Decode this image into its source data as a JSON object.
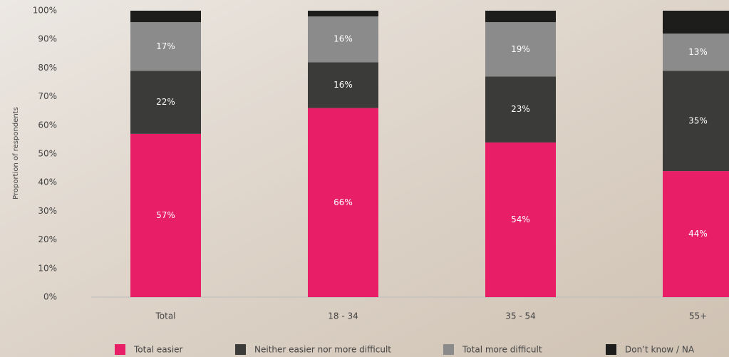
{
  "chart_data": {
    "type": "stacked_bar",
    "y_label": "Proportion of respondents",
    "categories": [
      "Total",
      "18 - 34",
      "35 - 54",
      "55+"
    ],
    "series": [
      {
        "name": "Total easier",
        "color": "#e81f67",
        "values": [
          57,
          66,
          54,
          44
        ],
        "value_labels": [
          "57%",
          "66%",
          "54%",
          "44%"
        ]
      },
      {
        "name": "Neither easier nor more difficult",
        "color": "#3b3b39",
        "values": [
          22,
          16,
          23,
          35
        ],
        "value_labels": [
          "22%",
          "16%",
          "23%",
          "35%"
        ]
      },
      {
        "name": "Total more difficult",
        "color": "#8b8b8b",
        "values": [
          17,
          16,
          19,
          13
        ],
        "value_labels": [
          "17%",
          "16%",
          "19%",
          "13%"
        ]
      },
      {
        "name": "Don’t know / NA",
        "color": "#1d1d1b",
        "values": [
          4,
          2,
          4,
          8
        ]
      }
    ],
    "ylim": [
      0,
      100
    ],
    "yticks": [
      {
        "value": 0,
        "label": "0%"
      },
      {
        "value": 10,
        "label": "10%"
      },
      {
        "value": 20,
        "label": "20%"
      },
      {
        "value": 30,
        "label": "30%"
      },
      {
        "value": 40,
        "label": "40%"
      },
      {
        "value": 50,
        "label": "50%"
      },
      {
        "value": 60,
        "label": "60%"
      },
      {
        "value": 70,
        "label": "70%"
      },
      {
        "value": 80,
        "label": "80%"
      },
      {
        "value": 90,
        "label": "90%"
      },
      {
        "value": 100,
        "label": "100%"
      }
    ]
  }
}
